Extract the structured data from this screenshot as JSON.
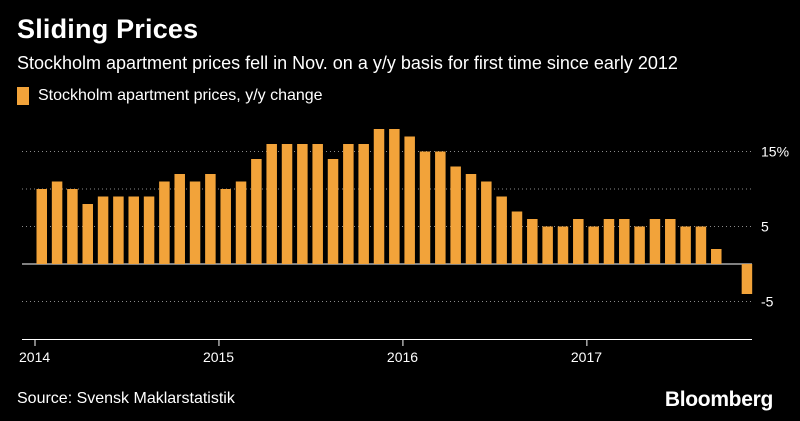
{
  "header": {
    "title": "Sliding Prices",
    "subtitle": "Stockholm apartment prices fell in Nov. on a y/y basis for first time since early 2012"
  },
  "footer": {
    "source": "Source: Svensk Maklarstatistik",
    "brand": "Bloomberg"
  },
  "colors": {
    "bar": "#f2a33a",
    "background": "#000000",
    "gridline": "#8a8a8a"
  },
  "chart_data": {
    "type": "bar",
    "title": "Sliding Prices",
    "subtitle": "Stockholm apartment prices fell in Nov. on a y/y basis for first time since early 2012",
    "series": [
      {
        "name": "Stockholm apartment prices, y/y change",
        "values": [
          10,
          11,
          10,
          8,
          9,
          9,
          9,
          9,
          11,
          12,
          11,
          12,
          10,
          11,
          14,
          16,
          16,
          16,
          16,
          14,
          16,
          16,
          18,
          18,
          17,
          15,
          15,
          13,
          12,
          11,
          9,
          7,
          6,
          5,
          5,
          6,
          5,
          6,
          6,
          5,
          6,
          6,
          5,
          5,
          2,
          0,
          -4
        ]
      }
    ],
    "x_start": "2014-01",
    "x_tick_labels": [
      "2014",
      "2015",
      "2016",
      "2017"
    ],
    "y_tick_values": [
      15,
      10,
      5,
      0,
      -5
    ],
    "y_tick_labels": [
      "15%",
      "",
      "5",
      "",
      "-5"
    ],
    "ylim": [
      -9,
      20
    ],
    "xlabel": "",
    "ylabel": "",
    "grid": true,
    "legend": "top-left"
  }
}
